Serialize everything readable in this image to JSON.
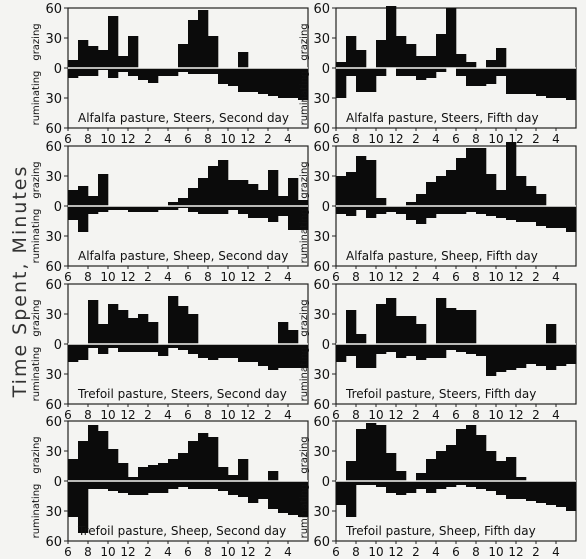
{
  "figure": {
    "y_axis_label": "Time  Spent,  Minutes",
    "upper_label": "grazing",
    "lower_label": "ruminating"
  },
  "chart_data": [
    {
      "type": "bar",
      "title": "Alfalfa pasture, Steers, Second day",
      "x_ticks": [
        "6",
        "8",
        "10",
        "12",
        "2",
        "4",
        "6",
        "8",
        "10",
        "12",
        "2",
        "4"
      ],
      "y_ticks": [
        "60",
        "30",
        "0",
        "30",
        "60"
      ],
      "ylim": [
        -60,
        60
      ],
      "series": [
        {
          "name": "grazing",
          "values": [
            8,
            28,
            22,
            18,
            52,
            12,
            32,
            0,
            0,
            0,
            0,
            24,
            48,
            58,
            32,
            0,
            0,
            16,
            0,
            0,
            0,
            0,
            0,
            0
          ]
        },
        {
          "name": "ruminating",
          "values": [
            -10,
            -8,
            -8,
            -2,
            -10,
            -4,
            -8,
            -12,
            -15,
            -8,
            -8,
            -4,
            -6,
            -6,
            -6,
            -16,
            -18,
            -24,
            -24,
            -26,
            -28,
            -30,
            -30,
            -32
          ]
        }
      ]
    },
    {
      "type": "bar",
      "title": "Alfalfa pasture, Steers, Fifth day",
      "x_ticks": [
        "6",
        "8",
        "10",
        "12",
        "2",
        "4",
        "6",
        "8",
        "10",
        "12",
        "2",
        "4"
      ],
      "y_ticks": [
        "60",
        "30",
        "0",
        "30",
        "60"
      ],
      "ylim": [
        -60,
        60
      ],
      "series": [
        {
          "name": "grazing",
          "values": [
            6,
            32,
            18,
            0,
            28,
            62,
            32,
            24,
            12,
            12,
            34,
            60,
            14,
            6,
            0,
            8,
            20,
            0,
            0,
            0,
            0,
            0,
            0,
            0
          ]
        },
        {
          "name": "ruminating",
          "values": [
            -30,
            -8,
            -24,
            -24,
            -8,
            0,
            -8,
            -8,
            -12,
            -10,
            -4,
            0,
            -8,
            -18,
            -18,
            -16,
            -8,
            -26,
            -26,
            -26,
            -28,
            -30,
            -30,
            -32
          ]
        }
      ]
    },
    {
      "type": "bar",
      "title": "Alfalfa pasture, Sheep, Second day",
      "x_ticks": [
        "6",
        "8",
        "10",
        "12",
        "2",
        "4",
        "6",
        "8",
        "10",
        "12",
        "2",
        "4"
      ],
      "y_ticks": [
        "60",
        "30",
        "0",
        "30",
        "60"
      ],
      "ylim": [
        -60,
        60
      ],
      "series": [
        {
          "name": "grazing",
          "values": [
            16,
            20,
            10,
            32,
            0,
            0,
            0,
            0,
            0,
            0,
            4,
            8,
            18,
            28,
            40,
            46,
            26,
            26,
            22,
            16,
            36,
            10,
            28,
            6
          ]
        },
        {
          "name": "ruminating",
          "values": [
            -14,
            -26,
            -8,
            -6,
            -4,
            -4,
            -6,
            -6,
            -6,
            -4,
            -4,
            -2,
            -6,
            -8,
            -8,
            -8,
            -4,
            -8,
            -12,
            -12,
            -16,
            -10,
            -24,
            -24
          ]
        }
      ]
    },
    {
      "type": "bar",
      "title": "Alfalfa pasture, Sheep, Fifth day",
      "x_ticks": [
        "6",
        "8",
        "10",
        "12",
        "2",
        "4",
        "6",
        "8",
        "10",
        "12",
        "2",
        "4"
      ],
      "y_ticks": [
        "60",
        "30",
        "0",
        "30",
        "60"
      ],
      "ylim": [
        -60,
        60
      ],
      "series": [
        {
          "name": "grazing",
          "values": [
            30,
            34,
            50,
            46,
            8,
            0,
            0,
            4,
            12,
            24,
            30,
            36,
            48,
            58,
            58,
            32,
            16,
            64,
            30,
            20,
            12,
            0,
            0,
            0
          ]
        },
        {
          "name": "ruminating",
          "values": [
            -8,
            -10,
            -4,
            -12,
            -8,
            -6,
            -8,
            -14,
            -18,
            -12,
            -8,
            -8,
            -8,
            -6,
            -8,
            -10,
            -12,
            -14,
            -16,
            -16,
            -20,
            -22,
            -22,
            -26
          ]
        }
      ]
    },
    {
      "type": "bar",
      "title": "Trefoil pasture, Steers, Second day",
      "x_ticks": [
        "6",
        "8",
        "10",
        "12",
        "2",
        "4",
        "6",
        "8",
        "10",
        "12",
        "2",
        "4"
      ],
      "y_ticks": [
        "60",
        "30",
        "0",
        "30",
        "60"
      ],
      "ylim": [
        -60,
        60
      ],
      "series": [
        {
          "name": "grazing",
          "values": [
            0,
            0,
            44,
            20,
            40,
            34,
            26,
            30,
            22,
            0,
            48,
            38,
            30,
            0,
            0,
            0,
            0,
            0,
            0,
            0,
            0,
            22,
            14,
            0
          ]
        },
        {
          "name": "ruminating",
          "values": [
            -18,
            -16,
            -4,
            -10,
            -4,
            -8,
            -8,
            -8,
            -8,
            -12,
            -4,
            -6,
            -10,
            -14,
            -16,
            -14,
            -14,
            -18,
            -18,
            -22,
            -26,
            -24,
            -24,
            -24
          ]
        }
      ]
    },
    {
      "type": "bar",
      "title": "Trefoil pasture, Steers, Fifth day",
      "x_ticks": [
        "6",
        "8",
        "10",
        "12",
        "2",
        "4",
        "6",
        "8",
        "10",
        "12",
        "2",
        "4"
      ],
      "y_ticks": [
        "60",
        "30",
        "0",
        "30",
        "60"
      ],
      "ylim": [
        -60,
        60
      ],
      "series": [
        {
          "name": "grazing",
          "values": [
            0,
            34,
            10,
            0,
            40,
            46,
            28,
            28,
            20,
            0,
            46,
            36,
            34,
            34,
            0,
            0,
            0,
            0,
            0,
            0,
            0,
            20,
            0,
            0
          ]
        },
        {
          "name": "ruminating",
          "values": [
            -18,
            -12,
            -24,
            -24,
            -10,
            -8,
            -14,
            -12,
            -16,
            -14,
            -14,
            -6,
            -8,
            -10,
            -12,
            -32,
            -28,
            -26,
            -24,
            -20,
            -22,
            -26,
            -22,
            -20
          ]
        }
      ]
    },
    {
      "type": "bar",
      "title": "Trefoil pasture, Sheep, Second day",
      "x_ticks": [
        "6",
        "8",
        "10",
        "12",
        "2",
        "4",
        "6",
        "8",
        "10",
        "12",
        "2",
        "4"
      ],
      "y_ticks": [
        "60",
        "30",
        "0",
        "30",
        "60"
      ],
      "ylim": [
        -60,
        60
      ],
      "series": [
        {
          "name": "grazing",
          "values": [
            22,
            40,
            56,
            50,
            32,
            18,
            4,
            14,
            16,
            18,
            22,
            28,
            40,
            48,
            44,
            14,
            6,
            22,
            0,
            0,
            10,
            0,
            0,
            0
          ]
        },
        {
          "name": "ruminating",
          "values": [
            -36,
            -52,
            -8,
            -8,
            -10,
            -12,
            -14,
            -14,
            -12,
            -12,
            -8,
            -6,
            -8,
            -8,
            -8,
            -10,
            -14,
            -16,
            -22,
            -18,
            -28,
            -32,
            -34,
            -36
          ]
        }
      ]
    },
    {
      "type": "bar",
      "title": "Trefoil pasture, Sheep, Fifth day",
      "x_ticks": [
        "6",
        "8",
        "10",
        "12",
        "2",
        "4",
        "6",
        "8",
        "10",
        "12",
        "2",
        "4"
      ],
      "y_ticks": [
        "60",
        "30",
        "0",
        "30",
        "60"
      ],
      "ylim": [
        -60,
        60
      ],
      "series": [
        {
          "name": "grazing",
          "values": [
            0,
            20,
            52,
            58,
            56,
            28,
            10,
            0,
            8,
            22,
            30,
            36,
            52,
            56,
            46,
            30,
            20,
            24,
            4,
            0,
            0,
            0,
            0,
            0
          ]
        },
        {
          "name": "ruminating",
          "values": [
            -24,
            -36,
            -4,
            -4,
            -6,
            -12,
            -14,
            -12,
            -8,
            -12,
            -8,
            -6,
            -4,
            -6,
            -8,
            -10,
            -14,
            -18,
            -18,
            -20,
            -22,
            -24,
            -26,
            -30
          ]
        }
      ]
    }
  ]
}
